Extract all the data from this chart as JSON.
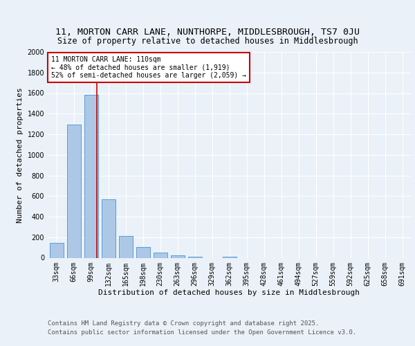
{
  "title_line1": "11, MORTON CARR LANE, NUNTHORPE, MIDDLESBROUGH, TS7 0JU",
  "title_line2": "Size of property relative to detached houses in Middlesbrough",
  "xlabel": "Distribution of detached houses by size in Middlesbrough",
  "ylabel": "Number of detached properties",
  "categories": [
    "33sqm",
    "66sqm",
    "99sqm",
    "132sqm",
    "165sqm",
    "198sqm",
    "230sqm",
    "263sqm",
    "296sqm",
    "329sqm",
    "362sqm",
    "395sqm",
    "428sqm",
    "461sqm",
    "494sqm",
    "527sqm",
    "559sqm",
    "592sqm",
    "625sqm",
    "658sqm",
    "691sqm"
  ],
  "values": [
    145,
    1295,
    1580,
    570,
    215,
    105,
    50,
    22,
    12,
    0,
    12,
    0,
    0,
    0,
    0,
    0,
    0,
    0,
    0,
    0,
    0
  ],
  "bar_color": "#adc8e6",
  "bar_edge_color": "#5b9bd5",
  "bar_width": 0.8,
  "vline_color": "#cc0000",
  "annotation_text": "11 MORTON CARR LANE: 110sqm\n← 48% of detached houses are smaller (1,919)\n52% of semi-detached houses are larger (2,059) →",
  "annotation_box_color": "#ffffff",
  "annotation_box_edge": "#cc0000",
  "ylim": [
    0,
    2000
  ],
  "yticks": [
    0,
    200,
    400,
    600,
    800,
    1000,
    1200,
    1400,
    1600,
    1800,
    2000
  ],
  "footer_line1": "Contains HM Land Registry data © Crown copyright and database right 2025.",
  "footer_line2": "Contains public sector information licensed under the Open Government Licence v3.0.",
  "bg_color": "#eaf1f8",
  "plot_bg_color": "#eaf1f8",
  "grid_color": "#ffffff",
  "title_fontsize": 9.5,
  "subtitle_fontsize": 8.5,
  "axis_label_fontsize": 8,
  "tick_fontsize": 7,
  "annot_fontsize": 7,
  "footer_fontsize": 6.5
}
